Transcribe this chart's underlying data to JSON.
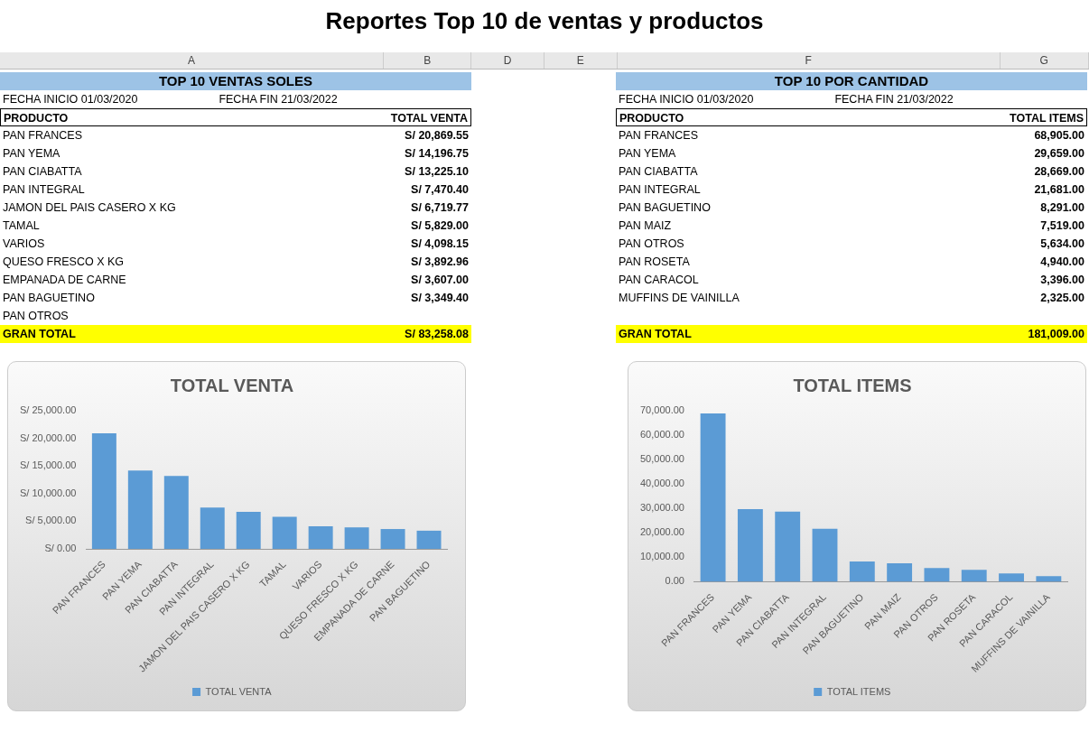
{
  "chart_data": [
    {
      "type": "other",
      "title": "Reportes Top 10 de ventas y productos",
      "annotations": [
        "A",
        "B",
        "D",
        "E",
        "F",
        "G"
      ]
    },
    {
      "type": "bar",
      "title": "TOTAL VENTA",
      "categories": [
        "PAN FRANCES",
        "PAN YEMA",
        "PAN CIABATTA",
        "PAN INTEGRAL",
        "JAMON DEL PAIS CASERO X KG",
        "TAMAL",
        "VARIOS",
        "QUESO FRESCO X KG",
        "EMPANADA DE CARNE",
        "PAN BAGUETINO"
      ],
      "series": [
        {
          "name": "TOTAL VENTA",
          "color": "#5b9bd5",
          "values": [
            20900,
            14200,
            13200,
            7500,
            6700,
            5800,
            4100,
            3900,
            3600,
            3300
          ]
        }
      ],
      "ylim": [
        0,
        25000
      ],
      "yticks": [
        {
          "value": 0,
          "label": "S/ 0.00"
        },
        {
          "value": 5000,
          "label": "S/ 5,000.00"
        },
        {
          "value": 10000,
          "label": "S/ 10,000.00"
        },
        {
          "value": 15000,
          "label": "S/ 15,000.00"
        },
        {
          "value": 20000,
          "label": "S/ 20,000.00"
        },
        {
          "value": 25000,
          "label": "S/ 25,000.00"
        }
      ],
      "legend": "bottom",
      "annotations": [
        "TOP 10 VENTAS SOLES",
        "FECHA INICIO  01/03/2020",
        "FECHA FIN  21/03/2022",
        "PRODUCTO",
        "TOTAL VENTA",
        "S/ 20,869.55",
        "S/ 14,196.75",
        "S/ 13,225.10",
        "S/ 7,470.40",
        "S/ 6,719.77",
        "S/ 5,829.00",
        "S/ 4,098.15",
        "S/ 3,892.96",
        "S/ 3,607.00",
        "S/ 3,349.40",
        "PAN OTROS",
        "GRAN TOTAL",
        "S/ 83,258.08"
      ]
    },
    {
      "type": "bar",
      "title": "TOTAL ITEMS",
      "categories": [
        "PAN FRANCES",
        "PAN YEMA",
        "PAN CIABATTA",
        "PAN INTEGRAL",
        "PAN BAGUETINO",
        "PAN MAIZ",
        "PAN OTROS",
        "PAN ROSETA",
        "PAN CARACOL",
        "MUFFINS DE VAINILLA"
      ],
      "series": [
        {
          "name": "TOTAL ITEMS",
          "color": "#5b9bd5",
          "values": [
            68900,
            29700,
            28700,
            21700,
            8300,
            7500,
            5600,
            4900,
            3400,
            2300
          ]
        }
      ],
      "ylim": [
        0,
        70000
      ],
      "yticks": [
        {
          "value": 0,
          "label": "0.00"
        },
        {
          "value": 10000,
          "label": "10,000.00"
        },
        {
          "value": 20000,
          "label": "20,000.00"
        },
        {
          "value": 30000,
          "label": "30,000.00"
        },
        {
          "value": 40000,
          "label": "40,000.00"
        },
        {
          "value": 50000,
          "label": "50,000.00"
        },
        {
          "value": 60000,
          "label": "60,000.00"
        },
        {
          "value": 70000,
          "label": "70,000.00"
        }
      ],
      "legend": "bottom",
      "annotations": [
        "TOP 10 POR CANTIDAD",
        "FECHA INICIO  01/03/2020",
        "FECHA FIN  21/03/2022",
        "PRODUCTO",
        "TOTAL ITEMS",
        "68,905.00",
        "29,659.00",
        "28,669.00",
        "21,681.00",
        "8,291.00",
        "7,519.00",
        "5,634.00",
        "4,940.00",
        "3,396.00",
        "2,325.00",
        "GRAN TOTAL",
        "181,009.00"
      ]
    }
  ]
}
